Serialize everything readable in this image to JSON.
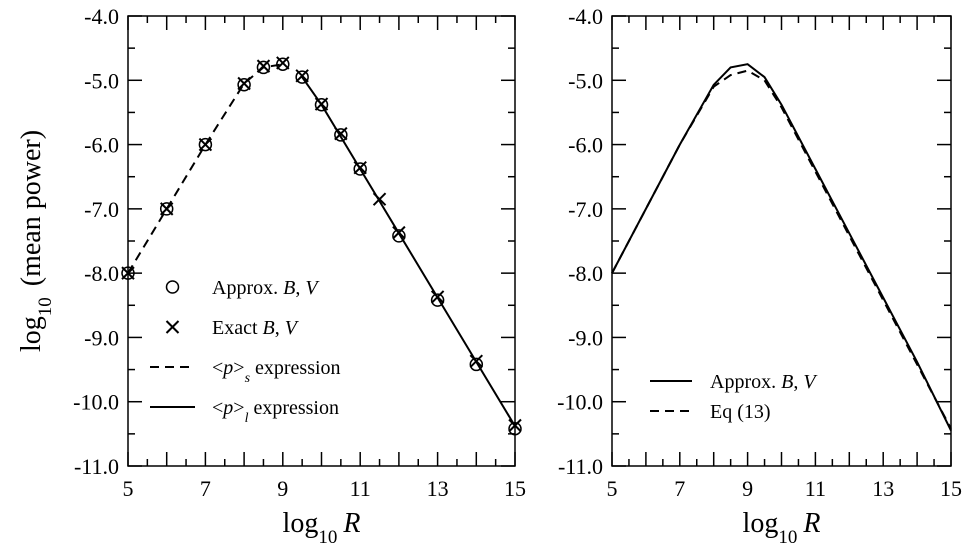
{
  "chart_data": [
    {
      "type": "line",
      "panel": "left",
      "xlabel": "log10 R",
      "ylabel": "log10 (mean power)",
      "xlim": [
        5,
        15
      ],
      "ylim": [
        -11,
        -4
      ],
      "x_ticks": [
        "5",
        "7",
        "9",
        "11",
        "13",
        "15"
      ],
      "y_ticks": [
        "-4.0",
        "-5.0",
        "-6.0",
        "-7.0",
        "-8.0",
        "-9.0",
        "-10.0",
        "-11.0"
      ],
      "series": [
        {
          "name": "Approx. B, V",
          "marker": "circle",
          "x": [
            5,
            6,
            7,
            8,
            8.5,
            9,
            9.5,
            10,
            10.5,
            11,
            12,
            13,
            14,
            15
          ],
          "y": [
            -8.0,
            -7.0,
            -6.0,
            -5.07,
            -4.8,
            -4.75,
            -4.95,
            -5.38,
            -5.85,
            -6.38,
            -7.42,
            -8.42,
            -9.42,
            -10.42
          ]
        },
        {
          "name": "Exact B, V",
          "marker": "cross",
          "x": [
            5,
            6,
            7,
            8,
            8.5,
            9,
            9.5,
            10,
            10.5,
            11,
            11.5,
            12,
            13,
            14,
            15
          ],
          "y": [
            -8.0,
            -7.0,
            -6.0,
            -5.05,
            -4.78,
            -4.73,
            -4.93,
            -5.37,
            -5.83,
            -6.36,
            -6.85,
            -7.37,
            -8.37,
            -9.37,
            -10.37
          ]
        },
        {
          "name": "<p>s expression",
          "style": "dashed",
          "x": [
            5,
            6,
            7,
            8,
            8.5,
            9
          ],
          "y": [
            -8.0,
            -7.0,
            -6.0,
            -5.05,
            -4.8,
            -4.75
          ]
        },
        {
          "name": "<p>l expression",
          "style": "solid",
          "x": [
            9.5,
            10,
            11,
            12,
            13,
            14,
            15
          ],
          "y": [
            -4.95,
            -5.38,
            -6.38,
            -7.38,
            -8.38,
            -9.38,
            -10.38
          ]
        }
      ],
      "legend": [
        {
          "marker": "circle",
          "parts": [
            {
              "t": "Approx. "
            },
            {
              "t": "B",
              "i": true
            },
            {
              "t": ", "
            },
            {
              "t": "V",
              "i": true
            }
          ]
        },
        {
          "marker": "cross",
          "parts": [
            {
              "t": "Exact "
            },
            {
              "t": "B",
              "i": true
            },
            {
              "t": ", "
            },
            {
              "t": "V",
              "i": true
            }
          ]
        },
        {
          "marker": "dashed",
          "parts": [
            {
              "t": "<"
            },
            {
              "t": "p",
              "i": true
            },
            {
              "t": ">"
            },
            {
              "t": "s",
              "i": true,
              "sub": true
            },
            {
              "t": " expression"
            }
          ]
        },
        {
          "marker": "solid",
          "parts": [
            {
              "t": "<"
            },
            {
              "t": "p",
              "i": true
            },
            {
              "t": ">"
            },
            {
              "t": "l",
              "i": true,
              "sub": true
            },
            {
              "t": " expression"
            }
          ]
        }
      ]
    },
    {
      "type": "line",
      "panel": "right",
      "xlabel": "log10 R",
      "xlim": [
        5,
        15
      ],
      "ylim": [
        -11,
        -4
      ],
      "x_ticks": [
        "5",
        "7",
        "9",
        "11",
        "13",
        "15"
      ],
      "y_ticks": [
        "-4.0",
        "-5.0",
        "-6.0",
        "-7.0",
        "-8.0",
        "-9.0",
        "-10.0",
        "-11.0"
      ],
      "series": [
        {
          "name": "Approx. B, V",
          "style": "solid",
          "x": [
            5,
            6,
            7,
            8,
            8.5,
            9,
            9.5,
            10,
            11,
            12,
            13,
            14,
            15
          ],
          "y": [
            -8.0,
            -7.0,
            -6.0,
            -5.07,
            -4.8,
            -4.75,
            -4.95,
            -5.38,
            -6.38,
            -7.38,
            -8.38,
            -9.38,
            -10.45
          ]
        },
        {
          "name": "Eq (13)",
          "style": "dashed",
          "x": [
            5,
            6,
            7,
            8,
            8.5,
            9,
            9.5,
            10,
            11,
            12,
            13,
            14,
            15
          ],
          "y": [
            -8.0,
            -7.0,
            -6.0,
            -5.1,
            -4.92,
            -4.85,
            -5.0,
            -5.42,
            -6.42,
            -7.42,
            -8.42,
            -9.42,
            -10.42
          ]
        }
      ],
      "legend": [
        {
          "marker": "solid",
          "parts": [
            {
              "t": "Approx. "
            },
            {
              "t": "B",
              "i": true
            },
            {
              "t": ", "
            },
            {
              "t": "V",
              "i": true
            }
          ]
        },
        {
          "marker": "dashed",
          "parts": [
            {
              "t": "Eq (13)"
            }
          ]
        }
      ]
    }
  ]
}
